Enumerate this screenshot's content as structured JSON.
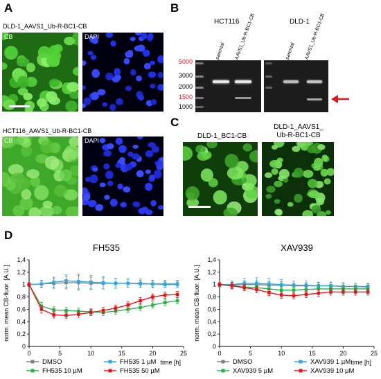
{
  "panel_letters": {
    "a": "A",
    "b": "B",
    "c": "C",
    "d": "D"
  },
  "panel_a": {
    "row1_title": "DLD-1_AAVS1_Ub-R-BC1-CB",
    "row2_title": "HCT116_AAVS1_Ub-R-BC1-CB",
    "cb_label": "CB",
    "dapi_label": "DAPI"
  },
  "panel_b": {
    "gel1_title": "HCT116",
    "gel2_title": "DLD-1",
    "lanes": [
      "parental",
      "AAVS1_Ub-R-BC1-CB"
    ],
    "ladder": [
      "5000",
      "3000",
      "2000",
      "1500",
      "1000"
    ],
    "ladder_red": [
      "5000",
      "1500"
    ],
    "colors": {
      "red": "#e5141b",
      "gel": "#1d1d1d"
    }
  },
  "panel_c": {
    "left_title": "DLD-1_BC1-CB",
    "right_title_line1": "DLD-1_AAVS1_",
    "right_title_line2": "Ub-R-BC1-CB"
  },
  "chart_data": [
    {
      "type": "line",
      "title": "FH535",
      "xlabel": "time [h]",
      "ylabel": "norm. mean CB-fluor. [A.U.]",
      "xlim": [
        0,
        25
      ],
      "ylim": [
        0,
        1.4
      ],
      "xticks": [
        "0",
        "5",
        "10",
        "15",
        "20",
        "25"
      ],
      "yticks": [
        "0",
        "0,2",
        "0,4",
        "0,6",
        "0,8",
        "1",
        "1,2",
        "1,4"
      ],
      "x": [
        0,
        2,
        4,
        6,
        8,
        10,
        12,
        14,
        16,
        18,
        20,
        22,
        24
      ],
      "series": [
        {
          "name": "DMSO",
          "color": "#808080",
          "values": [
            1.0,
            1.01,
            1.02,
            1.03,
            1.03,
            1.02,
            1.02,
            1.02,
            1.02,
            1.02,
            1.01,
            1.01,
            1.01
          ],
          "err": [
            0.03,
            0.05,
            0.08,
            0.1,
            0.12,
            0.1,
            0.09,
            0.08,
            0.07,
            0.07,
            0.06,
            0.06,
            0.06
          ]
        },
        {
          "name": "FH535 1 µM",
          "color": "#2fa8e1",
          "values": [
            1.0,
            1.01,
            1.04,
            1.06,
            1.05,
            1.04,
            1.03,
            1.02,
            1.02,
            1.01,
            1.01,
            1.0,
            1.0
          ],
          "err": [
            0.03,
            0.06,
            0.08,
            0.1,
            0.12,
            0.11,
            0.1,
            0.08,
            0.07,
            0.06,
            0.05,
            0.05,
            0.05
          ]
        },
        {
          "name": "FH535 10 µM",
          "color": "#2ab04a",
          "values": [
            1.0,
            0.65,
            0.59,
            0.58,
            0.57,
            0.56,
            0.55,
            0.57,
            0.6,
            0.63,
            0.67,
            0.71,
            0.74
          ],
          "err": [
            0.03,
            0.06,
            0.05,
            0.05,
            0.05,
            0.05,
            0.05,
            0.05,
            0.05,
            0.05,
            0.05,
            0.05,
            0.05
          ]
        },
        {
          "name": "FH535 50 µM",
          "color": "#e5141b",
          "values": [
            1.0,
            0.6,
            0.51,
            0.5,
            0.52,
            0.55,
            0.58,
            0.62,
            0.67,
            0.74,
            0.8,
            0.83,
            0.84
          ],
          "err": [
            0.03,
            0.06,
            0.05,
            0.05,
            0.05,
            0.05,
            0.05,
            0.05,
            0.05,
            0.05,
            0.05,
            0.05,
            0.05
          ]
        }
      ],
      "legend": "bottom"
    },
    {
      "type": "line",
      "title": "XAV939",
      "xlabel": "time [h]",
      "ylabel": "norm. mean CB-fluor. [A.U.]",
      "xlim": [
        0,
        25
      ],
      "ylim": [
        0,
        1.4
      ],
      "xticks": [
        "0",
        "5",
        "10",
        "15",
        "20",
        "25"
      ],
      "yticks": [
        "0",
        "0,2",
        "0,4",
        "0,6",
        "0,8",
        "1",
        "1,2",
        "1,4"
      ],
      "x": [
        0,
        2,
        4,
        6,
        8,
        10,
        12,
        14,
        16,
        18,
        20,
        22,
        24
      ],
      "series": [
        {
          "name": "DMSO",
          "color": "#808080",
          "values": [
            1.0,
            0.99,
            1.0,
            1.0,
            0.99,
            0.99,
            0.98,
            0.98,
            0.98,
            0.98,
            0.97,
            0.97,
            0.97
          ],
          "err": [
            0.03,
            0.05,
            0.06,
            0.06,
            0.06,
            0.06,
            0.05,
            0.05,
            0.05,
            0.05,
            0.05,
            0.05,
            0.05
          ]
        },
        {
          "name": "XAV939 1 µM",
          "color": "#2fa8e1",
          "values": [
            1.0,
            1.0,
            1.02,
            1.02,
            1.01,
            1.0,
            0.99,
            0.99,
            0.98,
            0.98,
            0.97,
            0.97,
            0.96
          ],
          "err": [
            0.03,
            0.06,
            0.08,
            0.09,
            0.09,
            0.08,
            0.07,
            0.07,
            0.06,
            0.06,
            0.06,
            0.05,
            0.05
          ]
        },
        {
          "name": "XAV939 5 µM",
          "color": "#2ab04a",
          "values": [
            1.0,
            0.98,
            0.96,
            0.95,
            0.93,
            0.91,
            0.91,
            0.92,
            0.93,
            0.93,
            0.93,
            0.93,
            0.93
          ],
          "err": [
            0.03,
            0.05,
            0.05,
            0.05,
            0.05,
            0.05,
            0.05,
            0.05,
            0.05,
            0.05,
            0.05,
            0.05,
            0.05
          ]
        },
        {
          "name": "XAV939 10 µM",
          "color": "#e5141b",
          "values": [
            1.0,
            0.98,
            0.95,
            0.92,
            0.87,
            0.83,
            0.82,
            0.84,
            0.86,
            0.88,
            0.88,
            0.88,
            0.88
          ],
          "err": [
            0.03,
            0.05,
            0.05,
            0.05,
            0.05,
            0.05,
            0.05,
            0.05,
            0.05,
            0.05,
            0.05,
            0.05,
            0.05
          ]
        }
      ],
      "legend": "bottom"
    }
  ]
}
